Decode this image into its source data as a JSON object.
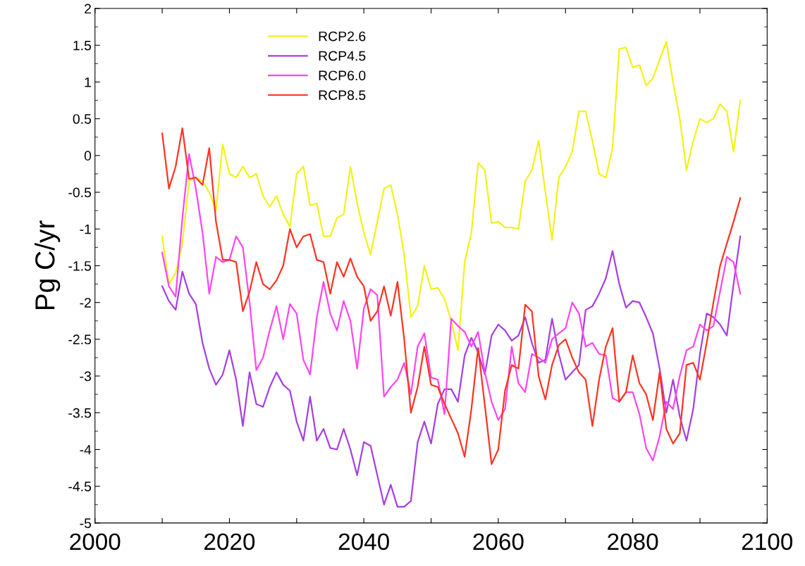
{
  "chart_data": {
    "type": "line",
    "ylabel": "Pg C/yr",
    "x": [
      2010,
      2011,
      2012,
      2013,
      2014,
      2015,
      2016,
      2017,
      2018,
      2019,
      2020,
      2021,
      2022,
      2023,
      2024,
      2025,
      2026,
      2027,
      2028,
      2029,
      2030,
      2031,
      2032,
      2033,
      2034,
      2035,
      2036,
      2037,
      2038,
      2039,
      2040,
      2041,
      2042,
      2043,
      2044,
      2045,
      2046,
      2047,
      2048,
      2049,
      2050,
      2051,
      2052,
      2053,
      2054,
      2055,
      2056,
      2057,
      2058,
      2059,
      2060,
      2061,
      2062,
      2063,
      2064,
      2065,
      2066,
      2067,
      2068,
      2069,
      2070,
      2071,
      2072,
      2073,
      2074,
      2075,
      2076,
      2077,
      2078,
      2079,
      2080,
      2081,
      2082,
      2083,
      2084,
      2085,
      2086,
      2087,
      2088,
      2089,
      2090,
      2091,
      2092,
      2093,
      2094,
      2095,
      2096
    ],
    "series": [
      {
        "name": "RCP2.6",
        "color": "#f2f21a",
        "values": [
          -1.1,
          -1.75,
          -1.6,
          -1.2,
          -0.35,
          -0.3,
          -0.35,
          -0.5,
          -0.75,
          0.15,
          -0.25,
          -0.3,
          -0.15,
          -0.3,
          -0.25,
          -0.55,
          -0.7,
          -0.55,
          -0.8,
          -0.97,
          -0.25,
          -0.15,
          -0.68,
          -0.65,
          -1.1,
          -1.1,
          -0.85,
          -0.8,
          -0.15,
          -0.65,
          -1.05,
          -1.35,
          -0.9,
          -0.45,
          -0.4,
          -0.8,
          -1.35,
          -2.2,
          -2.05,
          -1.5,
          -1.82,
          -1.8,
          -1.95,
          -2.25,
          -2.65,
          -1.45,
          -1.05,
          -0.1,
          -0.2,
          -0.92,
          -0.9,
          -0.98,
          -0.98,
          -1.0,
          -0.35,
          -0.2,
          0.2,
          -0.5,
          -1.15,
          -0.3,
          -0.15,
          0.05,
          0.6,
          0.6,
          0.2,
          -0.25,
          -0.3,
          0.1,
          1.45,
          1.47,
          1.2,
          1.23,
          0.95,
          1.05,
          1.3,
          1.55,
          1.0,
          0.5,
          -0.2,
          0.2,
          0.5,
          0.45,
          0.5,
          0.7,
          0.6,
          0.05,
          0.75
        ]
      },
      {
        "name": "RCP4.5",
        "color": "#a63fe0",
        "values": [
          -1.78,
          -1.98,
          -2.1,
          -1.58,
          -1.88,
          -2.02,
          -2.55,
          -2.9,
          -3.12,
          -2.98,
          -2.65,
          -3.05,
          -3.68,
          -2.95,
          -3.38,
          -3.42,
          -3.15,
          -2.95,
          -3.12,
          -3.2,
          -3.62,
          -3.88,
          -3.28,
          -3.88,
          -3.72,
          -3.98,
          -4.0,
          -3.72,
          -4.0,
          -4.35,
          -3.9,
          -3.95,
          -4.35,
          -4.75,
          -4.48,
          -4.78,
          -4.78,
          -4.7,
          -3.9,
          -3.62,
          -3.92,
          -3.38,
          -3.18,
          -3.18,
          -3.35,
          -2.72,
          -2.48,
          -2.68,
          -2.98,
          -2.45,
          -2.3,
          -2.38,
          -2.52,
          -2.45,
          -2.2,
          -2.55,
          -2.82,
          -2.78,
          -2.22,
          -2.7,
          -3.05,
          -2.95,
          -2.85,
          -2.1,
          -2.05,
          -1.88,
          -1.67,
          -1.3,
          -1.75,
          -2.07,
          -1.98,
          -2.0,
          -2.2,
          -2.42,
          -2.9,
          -3.5,
          -3.05,
          -3.55,
          -3.88,
          -3.45,
          -2.7,
          -2.15,
          -2.2,
          -2.3,
          -2.45,
          -1.75,
          -1.1
        ]
      },
      {
        "name": "RCP6.0",
        "color": "#ff45f0",
        "values": [
          -1.32,
          -1.78,
          -1.92,
          -0.85,
          0.02,
          -0.45,
          -1.05,
          -1.88,
          -1.38,
          -1.45,
          -1.42,
          -1.1,
          -1.25,
          -2.0,
          -2.92,
          -2.75,
          -2.38,
          -2.05,
          -2.5,
          -2.02,
          -2.15,
          -2.78,
          -2.98,
          -2.2,
          -1.72,
          -2.15,
          -2.38,
          -1.98,
          -2.25,
          -2.9,
          -2.08,
          -1.82,
          -1.9,
          -3.28,
          -3.15,
          -3.05,
          -2.82,
          -3.25,
          -2.6,
          -2.42,
          -3.02,
          -3.05,
          -3.52,
          -2.22,
          -2.32,
          -2.4,
          -2.6,
          -2.4,
          -2.95,
          -3.35,
          -3.6,
          -3.45,
          -2.6,
          -3.1,
          -3.22,
          -2.7,
          -2.75,
          -2.82,
          -2.5,
          -2.42,
          -2.35,
          -2.0,
          -2.15,
          -2.6,
          -2.55,
          -2.7,
          -2.72,
          -3.3,
          -3.35,
          -3.22,
          -3.22,
          -3.52,
          -3.98,
          -4.15,
          -3.82,
          -3.35,
          -3.45,
          -3.0,
          -2.65,
          -2.6,
          -2.3,
          -2.38,
          -2.32,
          -1.85,
          -1.38,
          -1.45,
          -1.88
        ]
      },
      {
        "name": "RCP8.5",
        "color": "#ff3322",
        "values": [
          0.3,
          -0.45,
          -0.15,
          0.37,
          -0.32,
          -0.3,
          -0.4,
          0.1,
          -0.9,
          -1.42,
          -1.42,
          -1.45,
          -2.12,
          -1.85,
          -1.45,
          -1.75,
          -1.82,
          -1.7,
          -1.5,
          -1.0,
          -1.25,
          -1.1,
          -1.07,
          -1.42,
          -1.45,
          -1.88,
          -1.45,
          -1.65,
          -1.4,
          -1.65,
          -1.78,
          -2.25,
          -2.12,
          -1.78,
          -2.18,
          -1.72,
          -2.5,
          -3.5,
          -3.15,
          -2.6,
          -3.12,
          -3.15,
          -3.38,
          -3.58,
          -3.78,
          -4.1,
          -3.45,
          -2.62,
          -3.4,
          -4.2,
          -4.0,
          -3.2,
          -2.85,
          -2.9,
          -2.03,
          -2.12,
          -3.0,
          -3.32,
          -2.85,
          -2.58,
          -2.5,
          -2.75,
          -2.95,
          -3.05,
          -3.68,
          -3.05,
          -2.6,
          -2.35,
          -3.35,
          -3.22,
          -2.72,
          -3.1,
          -3.25,
          -3.6,
          -2.95,
          -3.72,
          -3.92,
          -3.78,
          -2.85,
          -2.82,
          -3.05,
          -2.55,
          -2.0,
          -1.5,
          -1.2,
          -0.9,
          -0.58
        ]
      }
    ],
    "xlim": [
      2000,
      2100
    ],
    "xticks": [
      2000,
      {
        "value": 2010,
        "label": null
      },
      2020,
      {
        "value": 2030,
        "label": null
      },
      2040,
      {
        "value": 2050,
        "label": null
      },
      2060,
      {
        "value": 2070,
        "label": null
      },
      2080,
      {
        "value": 2090,
        "label": null
      },
      2100
    ],
    "ylim": [
      -5,
      2
    ],
    "yticks": [
      -5,
      -4.5,
      -4,
      -3.5,
      -3,
      -2.5,
      -2,
      -1.5,
      -1,
      -0.5,
      0,
      0.5,
      1,
      1.5,
      2
    ],
    "legend": "top left",
    "marker": "none",
    "line_style": "solid",
    "grid": false
  }
}
